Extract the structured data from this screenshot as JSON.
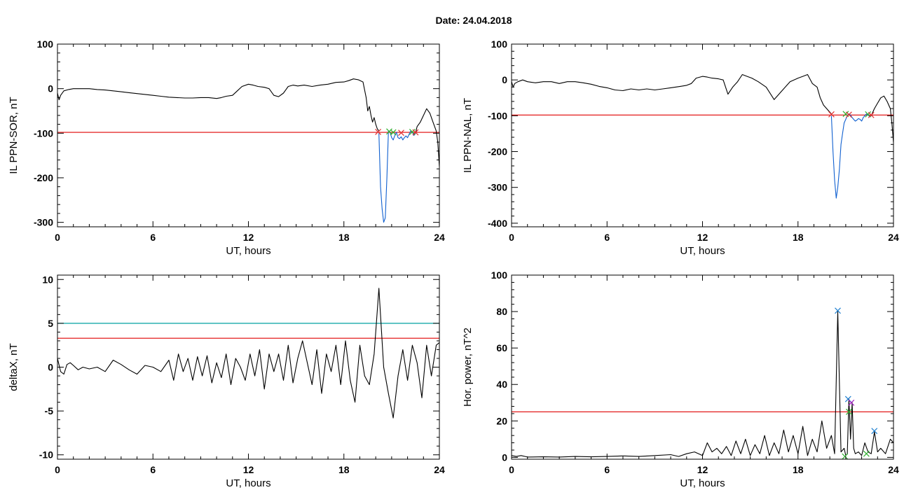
{
  "figure": {
    "title": "Date:  24.04.2018"
  },
  "colors": {
    "trace": "#000000",
    "threshold": "#e00000",
    "upper_threshold": "#00a0a0",
    "highlight": "#1060d0",
    "marker_red": "#e03030",
    "marker_green": "#30b030",
    "marker_blue": "#2080d0",
    "marker_purple": "#a020c0"
  },
  "chart_data": [
    {
      "id": "ppn-sor",
      "type": "line",
      "xlabel": "UT, hours",
      "ylabel": "IL PPN-SOR, nT",
      "xlim": [
        0,
        24
      ],
      "ylim": [
        -310,
        100
      ],
      "xticks": [
        "0",
        "6",
        "12",
        "18",
        "24"
      ],
      "xtick_values": [
        0,
        6,
        12,
        18,
        24
      ],
      "yticks": [
        "100",
        "0",
        "-100",
        "-200",
        "-300"
      ],
      "ytick_values": [
        100,
        0,
        -100,
        -200,
        -300
      ],
      "hlines": [
        {
          "y": -98,
          "color": "threshold"
        }
      ],
      "series": [
        {
          "color": "trace",
          "x": [
            0,
            0.1,
            0.2,
            0.4,
            0.7,
            1.0,
            1.5,
            2.0,
            2.5,
            3.0,
            3.5,
            4.0,
            4.5,
            5.0,
            5.5,
            6.0,
            6.5,
            7.0,
            7.5,
            8.0,
            8.5,
            9.0,
            9.5,
            10.0,
            10.3,
            10.6,
            11.0,
            11.3,
            11.6,
            12.0,
            12.3,
            12.6,
            13.0,
            13.3,
            13.6,
            13.9,
            14.2,
            14.5,
            14.8,
            15.1,
            15.5,
            16.0,
            16.5,
            17.0,
            17.5,
            18.0,
            18.3,
            18.6,
            18.9,
            19.2,
            19.4,
            19.5,
            19.6,
            19.7,
            19.8,
            19.9,
            20.0,
            20.1,
            20.2
          ],
          "y": [
            -10,
            -25,
            -15,
            -5,
            -2,
            0,
            0,
            0,
            -2,
            -3,
            -5,
            -7,
            -9,
            -11,
            -13,
            -15,
            -17,
            -19,
            -20,
            -21,
            -21,
            -20,
            -20,
            -22,
            -20,
            -17,
            -15,
            -5,
            5,
            10,
            8,
            5,
            3,
            0,
            -15,
            -18,
            -10,
            5,
            8,
            6,
            8,
            5,
            8,
            10,
            14,
            15,
            18,
            22,
            20,
            15,
            -20,
            -50,
            -40,
            -60,
            -75,
            -65,
            -80,
            -90,
            -95
          ]
        },
        {
          "color": "highlight",
          "x": [
            20.2,
            20.3,
            20.4,
            20.5,
            20.6,
            20.7,
            20.8,
            20.9,
            21.0,
            21.1,
            21.2,
            21.3,
            21.4,
            21.5,
            21.6,
            21.7,
            21.8,
            21.9,
            22.0,
            22.1,
            22.2,
            22.3,
            22.4,
            22.5
          ],
          "y": [
            -100,
            -220,
            -270,
            -300,
            -290,
            -200,
            -95,
            -98,
            -110,
            -115,
            -105,
            -98,
            -110,
            -112,
            -108,
            -115,
            -110,
            -106,
            -110,
            -102,
            -95,
            -98,
            -105,
            -100
          ]
        },
        {
          "color": "trace",
          "x": [
            22.5,
            22.6,
            22.8,
            23.0,
            23.2,
            23.4,
            23.6,
            23.8,
            23.9,
            24.0
          ],
          "y": [
            -100,
            -85,
            -75,
            -60,
            -45,
            -55,
            -75,
            -95,
            -120,
            -175
          ]
        }
      ],
      "markers": [
        {
          "x": 20.15,
          "y": -97,
          "color": "marker_red"
        },
        {
          "x": 20.85,
          "y": -96,
          "color": "marker_green"
        },
        {
          "x": 21.1,
          "y": -98,
          "color": "marker_green"
        },
        {
          "x": 21.6,
          "y": -99,
          "color": "marker_red"
        },
        {
          "x": 22.3,
          "y": -97,
          "color": "marker_green"
        },
        {
          "x": 22.5,
          "y": -98,
          "color": "marker_red"
        }
      ]
    },
    {
      "id": "ppn-nal",
      "type": "line",
      "xlabel": "UT, hours",
      "ylabel": "IL PPN-NAL, nT",
      "xlim": [
        0,
        24
      ],
      "ylim": [
        -410,
        100
      ],
      "xticks": [
        "0",
        "6",
        "12",
        "18",
        "24"
      ],
      "xtick_values": [
        0,
        6,
        12,
        18,
        24
      ],
      "yticks": [
        "100",
        "0",
        "-100",
        "-200",
        "-300",
        "-400"
      ],
      "ytick_values": [
        100,
        0,
        -100,
        -200,
        -300,
        -400
      ],
      "hlines": [
        {
          "y": -98,
          "color": "threshold"
        }
      ],
      "series": [
        {
          "color": "trace",
          "x": [
            0,
            0.1,
            0.2,
            0.4,
            0.7,
            1.0,
            1.5,
            2.0,
            2.5,
            3.0,
            3.5,
            4.0,
            4.5,
            5.0,
            5.5,
            6.0,
            6.5,
            7.0,
            7.5,
            8.0,
            8.5,
            9.0,
            9.5,
            10.0,
            10.3,
            10.6,
            11.0,
            11.3,
            11.6,
            12.0,
            12.3,
            12.6,
            13.0,
            13.3,
            13.6,
            13.9,
            14.2,
            14.5,
            14.8,
            15.1,
            15.5,
            16.0,
            16.5,
            17.0,
            17.5,
            18.0,
            18.3,
            18.6,
            18.9,
            19.2,
            19.4,
            19.5,
            19.6,
            19.7,
            19.8,
            19.9,
            20.0,
            20.1
          ],
          "y": [
            -5,
            -20,
            -10,
            -5,
            0,
            -5,
            -8,
            -5,
            -5,
            -10,
            -5,
            -5,
            -8,
            -12,
            -18,
            -22,
            -28,
            -30,
            -25,
            -28,
            -25,
            -28,
            -25,
            -22,
            -20,
            -18,
            -15,
            -10,
            5,
            10,
            8,
            5,
            3,
            0,
            -40,
            -20,
            -5,
            15,
            10,
            5,
            -5,
            -20,
            -55,
            -30,
            -5,
            5,
            10,
            15,
            -10,
            -20,
            -50,
            -60,
            -70,
            -75,
            -80,
            -85,
            -90,
            -95
          ]
        },
        {
          "color": "highlight",
          "x": [
            20.1,
            20.2,
            20.3,
            20.4,
            20.5,
            20.6,
            20.7,
            20.8,
            20.9,
            21.0,
            21.1,
            21.2,
            21.3,
            21.4,
            21.5,
            21.6,
            21.7,
            21.8,
            21.9,
            22.0,
            22.1,
            22.2,
            22.3,
            22.4,
            22.5,
            22.6
          ],
          "y": [
            -100,
            -200,
            -280,
            -330,
            -300,
            -250,
            -180,
            -150,
            -120,
            -110,
            -100,
            -95,
            -98,
            -105,
            -110,
            -115,
            -112,
            -108,
            -110,
            -115,
            -105,
            -100,
            -95,
            -98,
            -102,
            -100
          ]
        },
        {
          "color": "trace",
          "x": [
            22.6,
            22.8,
            23.0,
            23.2,
            23.4,
            23.6,
            23.8,
            23.9,
            24.0
          ],
          "y": [
            -100,
            -80,
            -65,
            -50,
            -45,
            -60,
            -80,
            -120,
            -175
          ]
        }
      ],
      "markers": [
        {
          "x": 20.1,
          "y": -96,
          "color": "marker_red"
        },
        {
          "x": 21.0,
          "y": -95,
          "color": "marker_green"
        },
        {
          "x": 21.2,
          "y": -97,
          "color": "marker_red"
        },
        {
          "x": 22.4,
          "y": -96,
          "color": "marker_green"
        },
        {
          "x": 22.6,
          "y": -98,
          "color": "marker_red"
        }
      ]
    },
    {
      "id": "deltax",
      "type": "line",
      "xlabel": "UT, hours",
      "ylabel": "deltaX, nT",
      "xlim": [
        0,
        24
      ],
      "ylim": [
        -10.5,
        10.5
      ],
      "xticks": [
        "0",
        "6",
        "12",
        "18",
        "24"
      ],
      "xtick_values": [
        0,
        6,
        12,
        18,
        24
      ],
      "yticks": [
        "10",
        "5",
        "0",
        "-5",
        "-10"
      ],
      "ytick_values": [
        10,
        5,
        0,
        -5,
        -10
      ],
      "hlines": [
        {
          "y": 5,
          "color": "upper_threshold"
        },
        {
          "y": 3.3,
          "color": "threshold"
        }
      ],
      "series": [
        {
          "color": "trace",
          "x": [
            0,
            0.2,
            0.4,
            0.6,
            0.8,
            1.0,
            1.3,
            1.6,
            2.0,
            2.5,
            3.0,
            3.5,
            4.0,
            4.5,
            5.0,
            5.5,
            6.0,
            6.5,
            7.0,
            7.3,
            7.6,
            7.9,
            8.2,
            8.5,
            8.8,
            9.1,
            9.4,
            9.7,
            10.0,
            10.3,
            10.6,
            10.9,
            11.2,
            11.5,
            11.8,
            12.1,
            12.4,
            12.7,
            13.0,
            13.3,
            13.6,
            13.9,
            14.2,
            14.5,
            14.8,
            15.1,
            15.4,
            15.7,
            16.0,
            16.3,
            16.6,
            16.9,
            17.2,
            17.5,
            17.8,
            18.1,
            18.4,
            18.7,
            19.0,
            19.3,
            19.6,
            19.9,
            20.2,
            20.5,
            20.8,
            21.1,
            21.4,
            21.7,
            22.0,
            22.3,
            22.6,
            22.9,
            23.2,
            23.5,
            23.8,
            24.0
          ],
          "y": [
            1.0,
            -0.5,
            -0.8,
            0.3,
            0.5,
            0.2,
            -0.3,
            0.0,
            -0.2,
            0.0,
            -0.5,
            0.8,
            0.3,
            -0.3,
            -0.8,
            0.2,
            0.0,
            -0.5,
            0.8,
            -1.5,
            1.5,
            -0.5,
            1.0,
            -1.5,
            1.2,
            -1.0,
            1.3,
            -1.8,
            0.5,
            -1.2,
            1.5,
            -2.0,
            1.0,
            0.0,
            -1.5,
            1.5,
            -1.0,
            2.0,
            -2.5,
            1.5,
            -0.5,
            1.5,
            -1.5,
            2.5,
            -1.8,
            1.0,
            3.0,
            0.5,
            -2.0,
            2.0,
            -3.0,
            1.5,
            -0.5,
            2.5,
            -2.0,
            3.0,
            -1.5,
            -4.0,
            2.5,
            -1.0,
            -2.0,
            1.5,
            9.0,
            0.0,
            -3.0,
            -5.8,
            -1.0,
            2.0,
            -1.5,
            2.5,
            0.5,
            -3.5,
            2.5,
            -1.0,
            2.5,
            2.8
          ]
        }
      ],
      "markers": []
    },
    {
      "id": "hor-power",
      "type": "line",
      "xlabel": "UT, hours",
      "ylabel": "Hor. power, nT^2",
      "xlim": [
        0,
        24
      ],
      "ylim": [
        -1,
        100
      ],
      "xticks": [
        "0",
        "6",
        "12",
        "18",
        "24"
      ],
      "xtick_values": [
        0,
        6,
        12,
        18,
        24
      ],
      "yticks": [
        "100",
        "80",
        "60",
        "40",
        "20",
        "0"
      ],
      "ytick_values": [
        100,
        80,
        60,
        40,
        20,
        0
      ],
      "hlines": [
        {
          "y": 25,
          "color": "threshold"
        }
      ],
      "series": [
        {
          "color": "trace",
          "x": [
            0,
            0.3,
            0.6,
            1.0,
            2.0,
            3.0,
            4.0,
            5.0,
            6.0,
            7.0,
            8.0,
            9.0,
            10.0,
            10.5,
            11.0,
            11.5,
            12.0,
            12.3,
            12.6,
            12.9,
            13.2,
            13.5,
            13.8,
            14.1,
            14.4,
            14.7,
            15.0,
            15.3,
            15.6,
            15.9,
            16.2,
            16.5,
            16.8,
            17.1,
            17.4,
            17.7,
            18.0,
            18.3,
            18.6,
            18.9,
            19.2,
            19.5,
            19.8,
            20.1,
            20.3,
            20.5,
            20.7,
            20.9,
            21.0,
            21.1,
            21.2,
            21.3,
            21.4,
            21.5,
            21.6,
            21.8,
            22.0,
            22.2,
            22.4,
            22.6,
            22.8,
            23.0,
            23.2,
            23.5,
            23.8,
            24.0
          ],
          "y": [
            1,
            0.5,
            1,
            0.2,
            0.3,
            0.2,
            0.5,
            0.3,
            0.5,
            0.8,
            0.5,
            1.0,
            1.5,
            0.5,
            2.0,
            3.0,
            1.0,
            8.0,
            3.0,
            5.0,
            2.0,
            6.0,
            1.0,
            9.0,
            2.0,
            10.0,
            1.0,
            7.0,
            2.0,
            12.0,
            1.0,
            8.0,
            2.0,
            15.0,
            3.0,
            12.0,
            2.0,
            17.0,
            1.0,
            10.0,
            3.0,
            20.0,
            5.0,
            12.0,
            2.0,
            80.0,
            3.0,
            5.0,
            1.0,
            2.0,
            32.0,
            10.0,
            30.0,
            5.0,
            2.0,
            3.0,
            1.0,
            8.0,
            3.0,
            2.0,
            14.0,
            3.0,
            5.0,
            2.0,
            10.0,
            8.0
          ]
        }
      ],
      "markers": [
        {
          "x": 20.5,
          "y": 80.5,
          "color": "marker_blue"
        },
        {
          "x": 20.95,
          "y": 0.5,
          "color": "marker_green"
        },
        {
          "x": 21.15,
          "y": 32,
          "color": "marker_blue"
        },
        {
          "x": 21.2,
          "y": 25,
          "color": "marker_green"
        },
        {
          "x": 21.35,
          "y": 30,
          "color": "marker_purple"
        },
        {
          "x": 22.3,
          "y": 2,
          "color": "marker_green"
        },
        {
          "x": 22.8,
          "y": 14.5,
          "color": "marker_blue"
        }
      ]
    }
  ]
}
